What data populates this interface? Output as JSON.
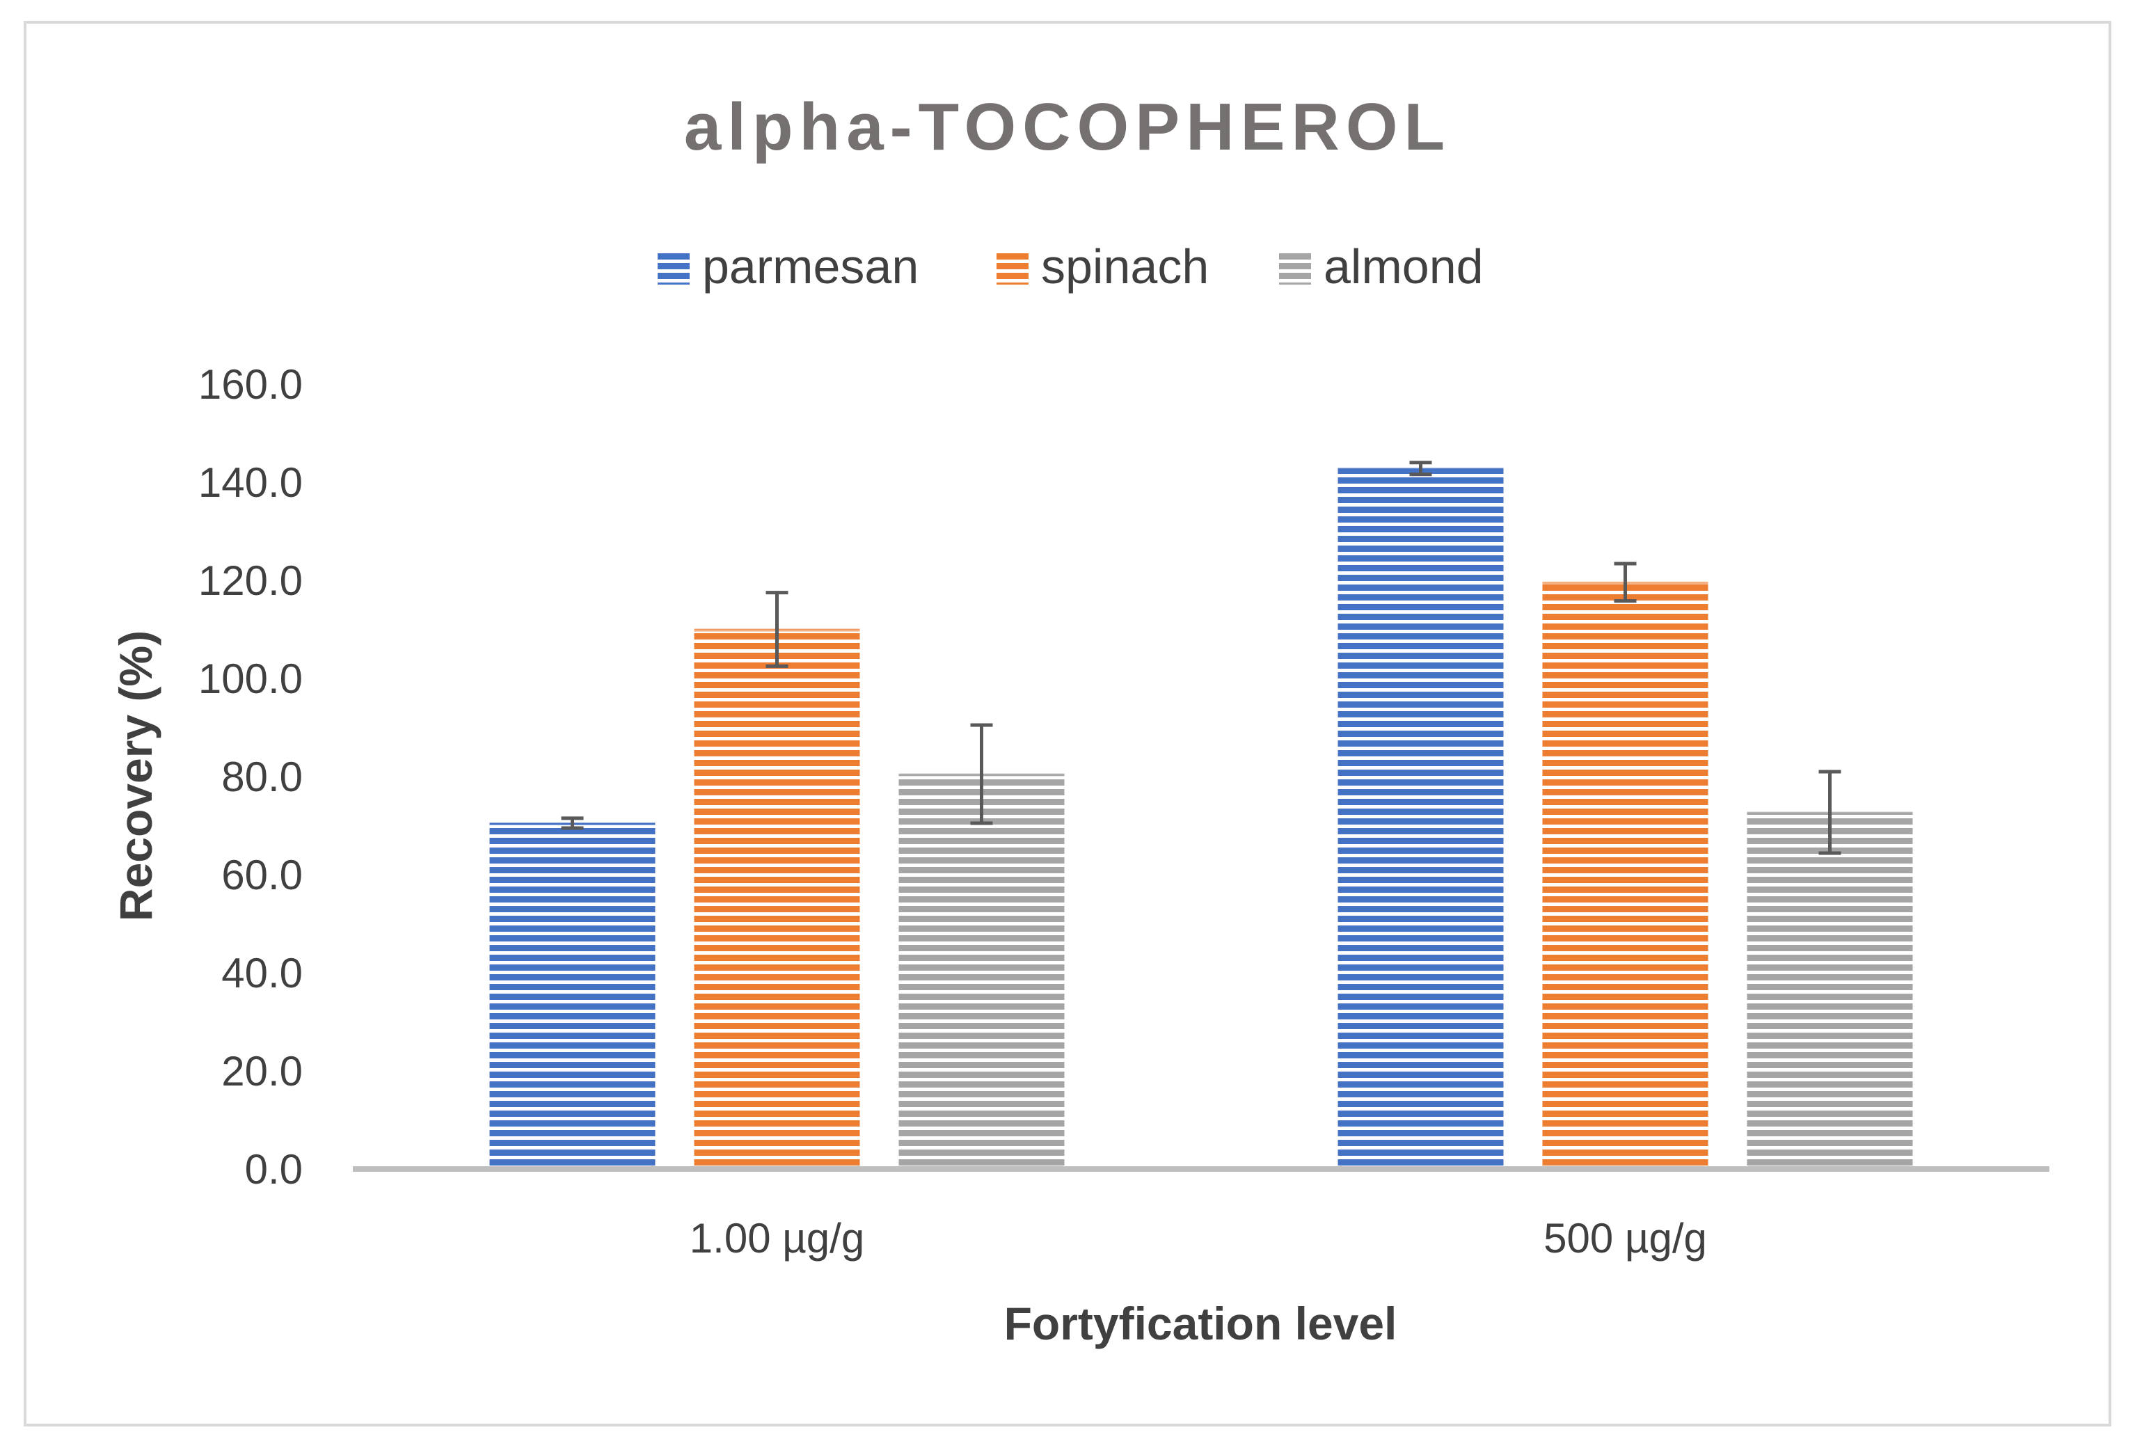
{
  "chart_data": {
    "type": "bar",
    "title": "alpha-TOCOPHEROL",
    "xlabel": "Fortyfication level",
    "ylabel": "Recovery (%)",
    "categories": [
      "1.00 µg/g",
      "500 µg/g"
    ],
    "series": [
      {
        "name": "parmesan",
        "values": [
          70.5,
          142.8
        ],
        "errors": [
          1.0,
          1.2
        ],
        "color": "#4472C4"
      },
      {
        "name": "spinach",
        "values": [
          110.0,
          119.6
        ],
        "errors": [
          7.5,
          3.8
        ],
        "color": "#ED7D31"
      },
      {
        "name": "almond",
        "values": [
          80.5,
          72.7
        ],
        "errors": [
          10.0,
          8.3
        ],
        "color": "#A5A5A5"
      }
    ],
    "ylim": [
      0,
      160
    ],
    "yticks": [
      "0.0",
      "20.0",
      "40.0",
      "60.0",
      "80.0",
      "100.0",
      "120.0",
      "140.0",
      "160.0"
    ],
    "legend_position": "top",
    "grid": false,
    "bar_fill": "horizontal-stripes"
  }
}
